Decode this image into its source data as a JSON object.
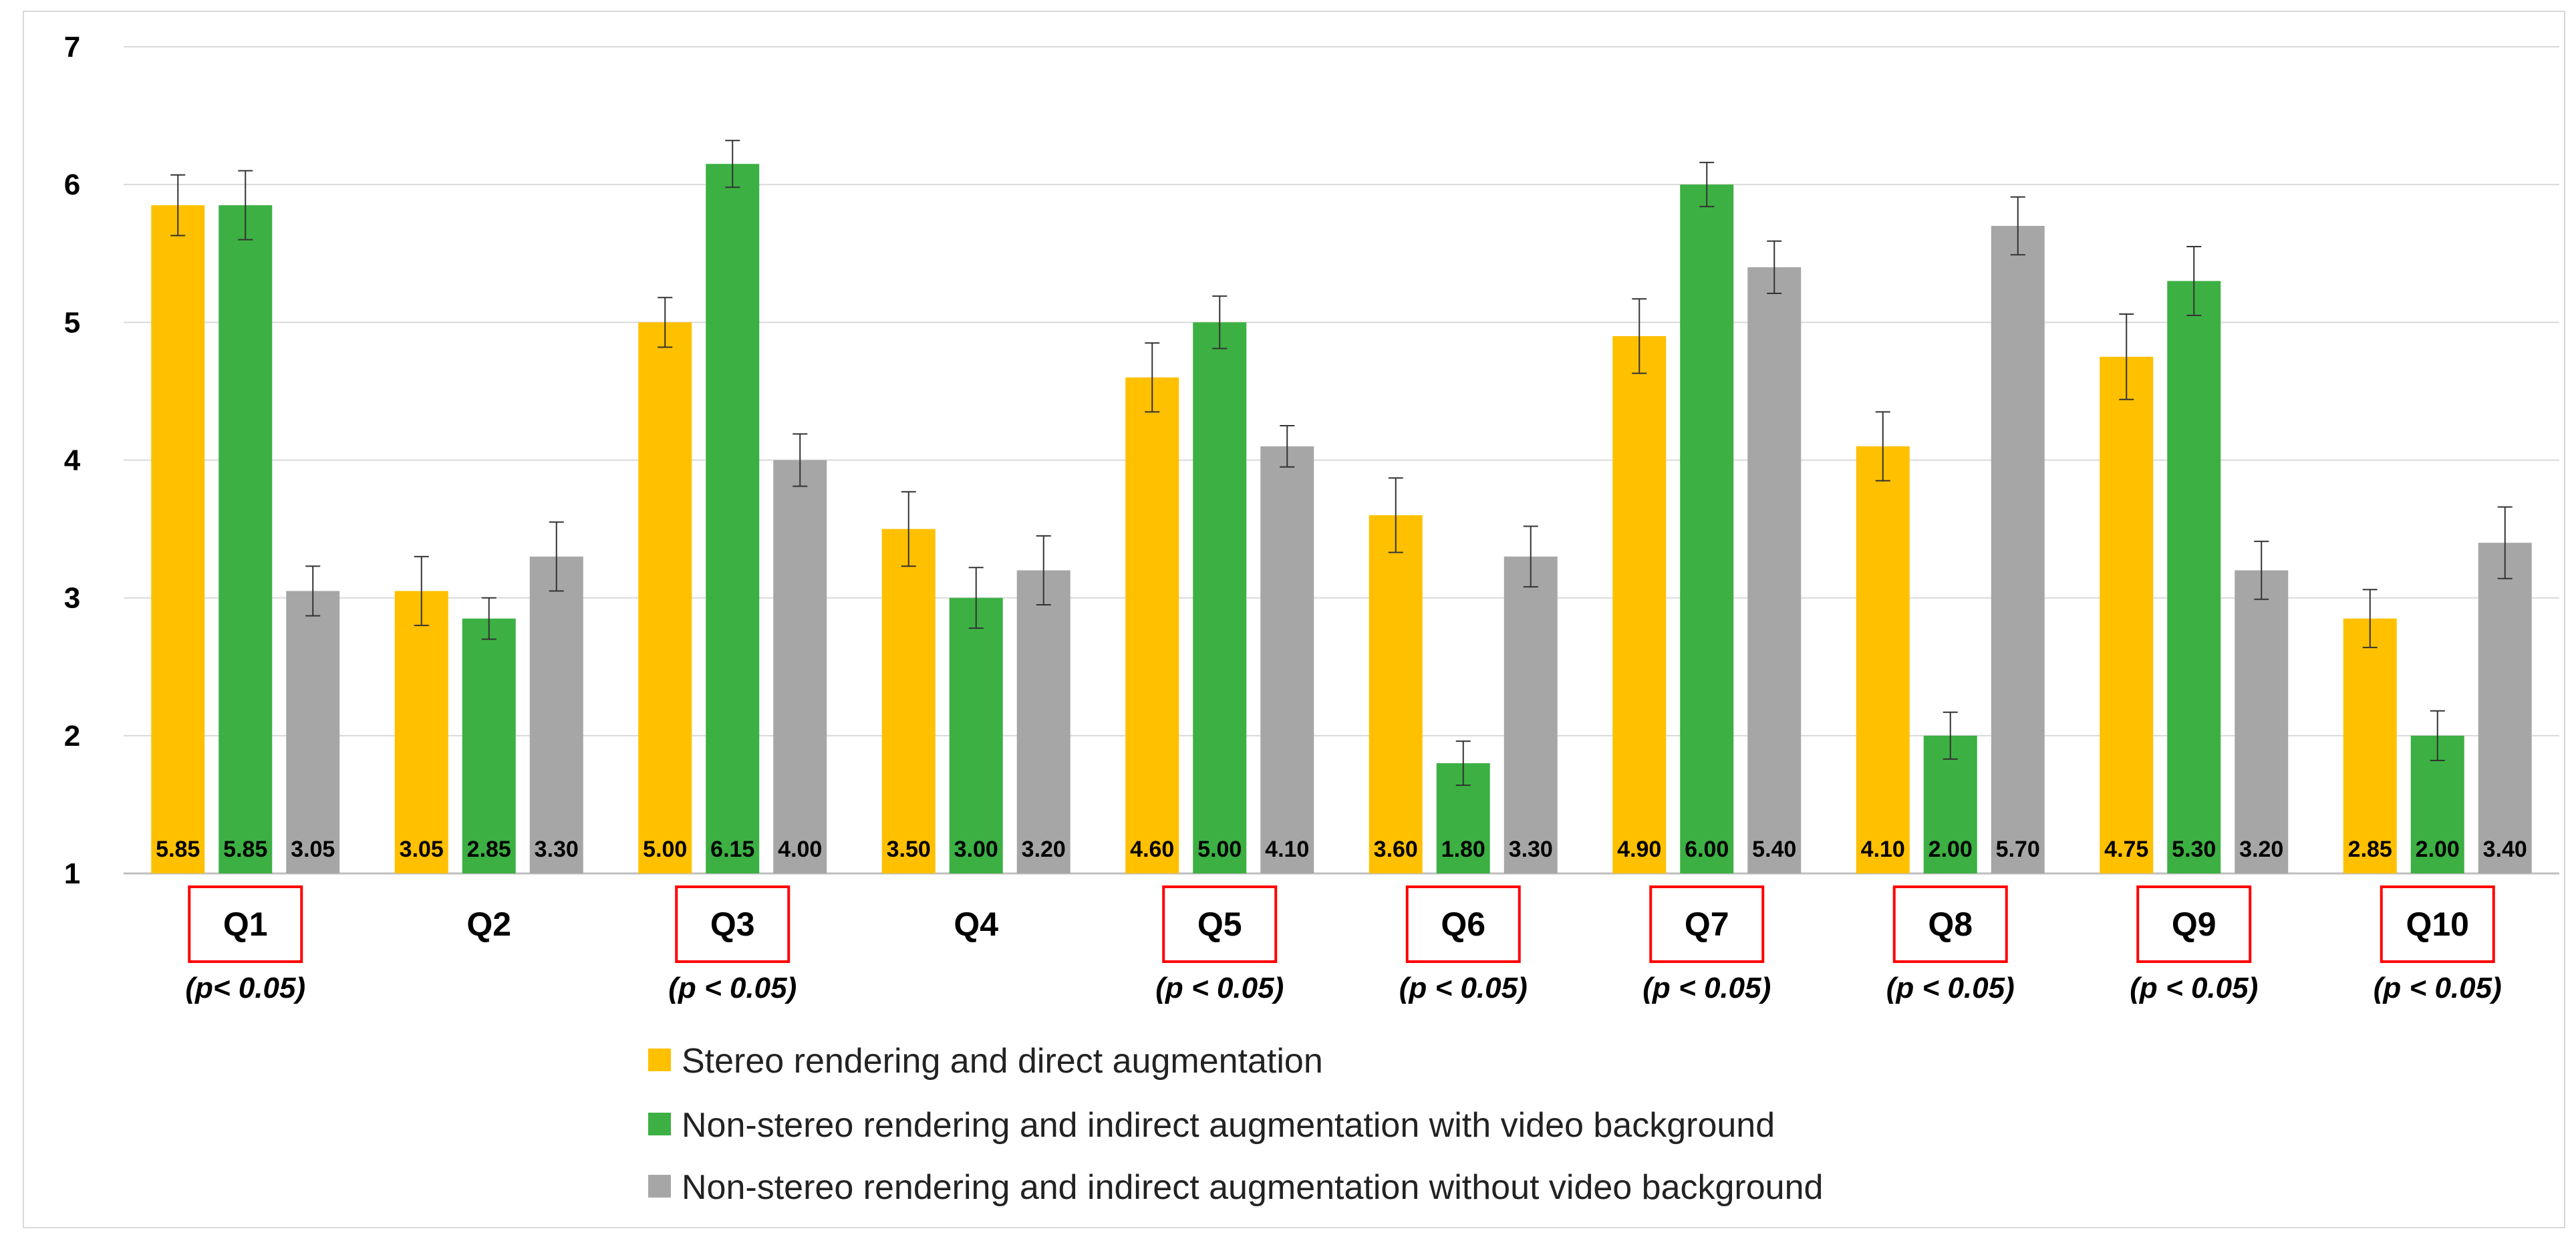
{
  "chart_data": {
    "type": "bar",
    "title": "",
    "xlabel": "",
    "ylabel": "",
    "ylim": [
      1,
      7
    ],
    "yticks": [
      "1",
      "2",
      "3",
      "4",
      "5",
      "6",
      "7"
    ],
    "grid": true,
    "legend_position": "bottom",
    "categories": [
      "Q1",
      "Q2",
      "Q3",
      "Q4",
      "Q5",
      "Q6",
      "Q7",
      "Q8",
      "Q9",
      "Q10"
    ],
    "highlighted": [
      true,
      false,
      true,
      false,
      true,
      true,
      true,
      true,
      true,
      true
    ],
    "p_notes": [
      "(p< 0.05)",
      "",
      "(p < 0.05)",
      "",
      "(p < 0.05)",
      "(p < 0.05)",
      "(p < 0.05)",
      "(p < 0.05)",
      "(p < 0.05)",
      "(p < 0.05)"
    ],
    "series": [
      {
        "name": "Stereo rendering and direct augmentation",
        "color": "#ffc000",
        "values": [
          5.85,
          3.05,
          5.0,
          3.5,
          4.6,
          3.6,
          4.9,
          4.1,
          4.75,
          2.85
        ],
        "labels": [
          "5.85",
          "3.05",
          "5.00",
          "3.50",
          "4.60",
          "3.60",
          "4.90",
          "4.10",
          "4.75",
          "2.85"
        ],
        "errors": [
          0.22,
          0.25,
          0.18,
          0.27,
          0.25,
          0.27,
          0.27,
          0.25,
          0.31,
          0.21
        ]
      },
      {
        "name": "Non-stereo rendering and indirect augmentation with video background",
        "color": "#3cb043",
        "values": [
          5.85,
          2.85,
          6.15,
          3.0,
          5.0,
          1.8,
          6.0,
          2.0,
          5.3,
          2.0
        ],
        "labels": [
          "5.85",
          "2.85",
          "6.15",
          "3.00",
          "5.00",
          "1.80",
          "6.00",
          "2.00",
          "5.30",
          "2.00"
        ],
        "errors": [
          0.25,
          0.15,
          0.17,
          0.22,
          0.19,
          0.16,
          0.16,
          0.17,
          0.25,
          0.18
        ]
      },
      {
        "name": "Non-stereo rendering and indirect augmentation without video background",
        "color": "#a6a6a6",
        "values": [
          3.05,
          3.3,
          4.0,
          3.2,
          4.1,
          3.3,
          5.4,
          5.7,
          3.2,
          3.4
        ],
        "labels": [
          "3.05",
          "3.30",
          "4.00",
          "3.20",
          "4.10",
          "3.30",
          "5.40",
          "5.70",
          "3.20",
          "3.40"
        ],
        "errors": [
          0.18,
          0.25,
          0.19,
          0.25,
          0.15,
          0.22,
          0.19,
          0.21,
          0.21,
          0.26
        ]
      }
    ],
    "highlight_color": "#ff0000",
    "grid_color": "#d9d9d9"
  }
}
